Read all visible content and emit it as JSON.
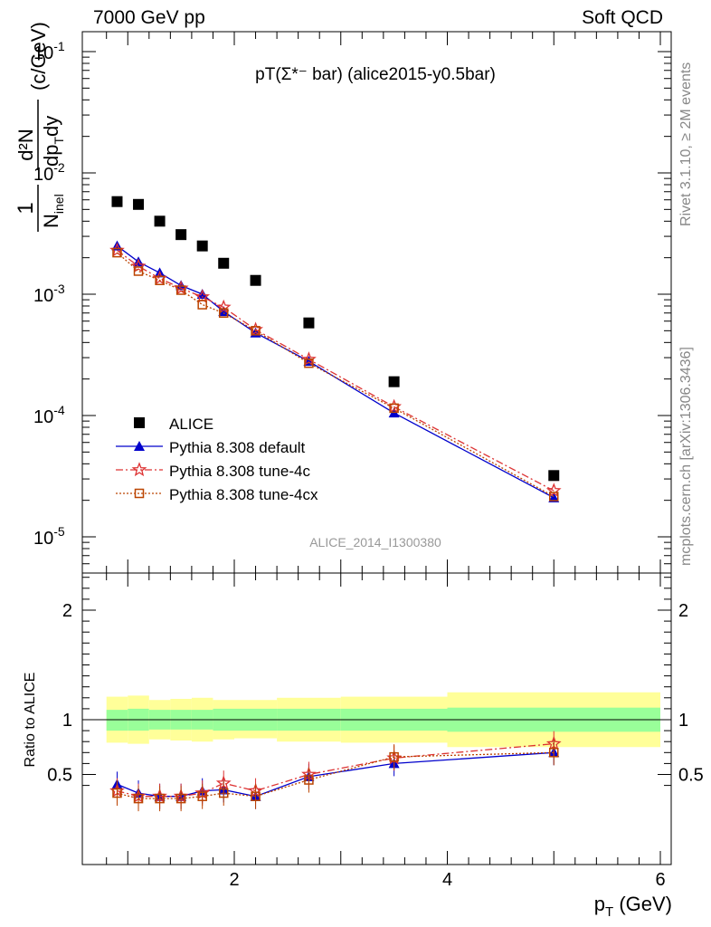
{
  "header": {
    "left": "7000 GeV pp",
    "right": "Soft QCD"
  },
  "side": {
    "rivet": "Rivet 3.1.10, ≥ 2M events",
    "mcplots": "mcplots.cern.ch [arXiv:1306.3436]"
  },
  "chart_data": [
    {
      "type": "scatter",
      "panel": "main",
      "title": "pT(Σ*⁻ bar) (alice2015-y0.5bar)",
      "watermark": "ALICE_2014_I1300380",
      "ylabel": "1/N_inel d²N/dp_T dy (c/GeV)",
      "yscale": "log",
      "ylim": [
        3.5e-06,
        0.14
      ],
      "xlim": [
        0.7,
        6.1
      ],
      "y_tick_labels": [
        "10^-1",
        "10^-2",
        "10^-3",
        "10^-4",
        "10^-5"
      ],
      "legend_position": "middle-left",
      "series": [
        {
          "name": "ALICE",
          "color": "#000000",
          "marker": "filled-square",
          "x": [
            0.9,
            1.1,
            1.3,
            1.5,
            1.7,
            1.9,
            2.2,
            2.7,
            3.5,
            5.0
          ],
          "y": [
            0.0058,
            0.0055,
            0.004,
            0.0031,
            0.0025,
            0.0018,
            0.0013,
            0.00058,
            0.00019,
            3.2e-05
          ]
        },
        {
          "name": "Pythia 8.308 default",
          "color": "#0000cc",
          "marker": "filled-triangle",
          "line": "solid",
          "x": [
            0.9,
            1.1,
            1.3,
            1.5,
            1.7,
            1.9,
            2.2,
            2.7,
            3.5,
            5.0
          ],
          "y": [
            0.0025,
            0.00185,
            0.0015,
            0.00118,
            0.001,
            0.00072,
            0.00048,
            0.00028,
            0.000105,
            2.1e-05
          ]
        },
        {
          "name": "Pythia 8.308 tune-4c",
          "color": "#dd3333",
          "marker": "open-star",
          "line": "dash-dot",
          "x": [
            0.9,
            1.1,
            1.3,
            1.5,
            1.7,
            1.9,
            2.2,
            2.7,
            3.5,
            5.0
          ],
          "y": [
            0.0023,
            0.0017,
            0.00135,
            0.00112,
            0.00095,
            0.00078,
            0.00051,
            0.00029,
            0.000118,
            2.4e-05
          ]
        },
        {
          "name": "Pythia 8.308 tune-4cx",
          "color": "#bb4400",
          "marker": "open-square",
          "line": "dotted",
          "x": [
            0.9,
            1.1,
            1.3,
            1.5,
            1.7,
            1.9,
            2.2,
            2.7,
            3.5,
            5.0
          ],
          "y": [
            0.0022,
            0.00155,
            0.0013,
            0.00108,
            0.00082,
            0.0007,
            0.0005,
            0.00027,
            0.000115,
            2.15e-05
          ]
        }
      ]
    },
    {
      "type": "line",
      "panel": "ratio",
      "ylabel": "Ratio to ALICE",
      "xlabel": "p_T (GeV)",
      "ylim": [
        0.34,
        2.45
      ],
      "xlim": [
        0.7,
        6.1
      ],
      "x_tick_labels": [
        "2",
        "4",
        "6"
      ],
      "y_tick_labels": [
        "0.5",
        "1",
        "2"
      ],
      "bands": {
        "edges": [
          0.8,
          1.0,
          1.2,
          1.4,
          1.6,
          1.8,
          2.0,
          2.4,
          3.0,
          4.0,
          6.0
        ],
        "inner_lo": [
          0.9,
          0.9,
          0.91,
          0.91,
          0.91,
          0.9,
          0.9,
          0.9,
          0.9,
          0.89
        ],
        "inner_hi": [
          1.09,
          1.1,
          1.09,
          1.09,
          1.09,
          1.1,
          1.1,
          1.1,
          1.1,
          1.11
        ],
        "outer_lo": [
          0.79,
          0.78,
          0.82,
          0.81,
          0.8,
          0.82,
          0.83,
          0.8,
          0.79,
          0.75
        ],
        "outer_hi": [
          1.21,
          1.22,
          1.18,
          1.19,
          1.2,
          1.18,
          1.18,
          1.2,
          1.21,
          1.25
        ],
        "inner_color": "#99ff99",
        "outer_color": "#ffff99"
      },
      "series": [
        {
          "name": "Pythia 8.308 default",
          "color": "#0000cc",
          "marker": "filled-triangle",
          "line": "solid",
          "x": [
            0.9,
            1.1,
            1.3,
            1.5,
            1.7,
            1.9,
            2.2,
            2.7,
            3.5,
            5.0
          ],
          "y": [
            0.41,
            0.33,
            0.3,
            0.3,
            0.35,
            0.36,
            0.3,
            0.48,
            0.6,
            0.7
          ]
        },
        {
          "name": "Pythia 8.308 tune-4c",
          "color": "#dd3333",
          "marker": "open-star",
          "line": "dash-dot",
          "x": [
            0.9,
            1.1,
            1.3,
            1.5,
            1.7,
            1.9,
            2.2,
            2.7,
            3.5,
            5.0
          ],
          "y": [
            0.35,
            0.3,
            0.3,
            0.3,
            0.33,
            0.42,
            0.35,
            0.5,
            0.65,
            0.78
          ]
        },
        {
          "name": "Pythia 8.308 tune-4cx",
          "color": "#bb4400",
          "marker": "open-square",
          "line": "dotted",
          "x": [
            0.9,
            1.1,
            1.3,
            1.5,
            1.7,
            1.9,
            2.2,
            2.7,
            3.5,
            5.0
          ],
          "y": [
            0.33,
            0.28,
            0.28,
            0.28,
            0.3,
            0.33,
            0.3,
            0.45,
            0.66,
            0.7
          ]
        }
      ]
    }
  ]
}
